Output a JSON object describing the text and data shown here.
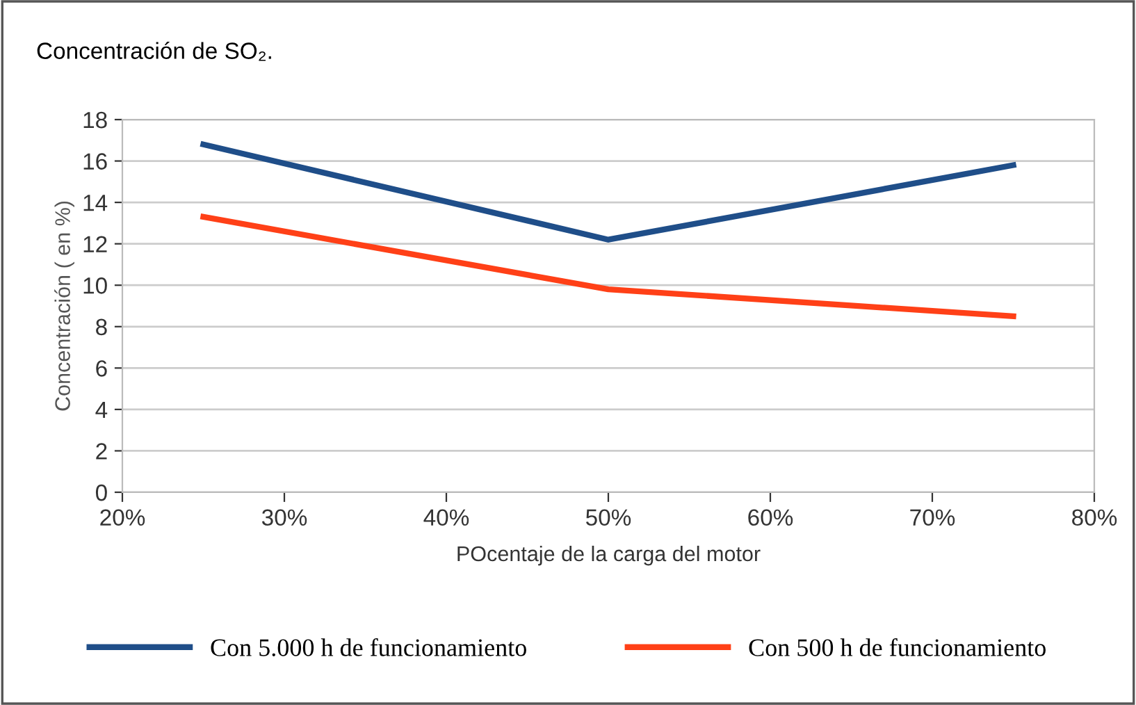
{
  "chart_data": {
    "type": "line",
    "title": "Concentración de SO₂.",
    "xlabel": "POcentaje de la carga del motor",
    "ylabel": "Concentración ( en %)",
    "x": [
      25,
      50,
      75
    ],
    "series": [
      {
        "name": "Con 5.000 h de funcionamiento",
        "color": "#1f4e89",
        "values": [
          16.8,
          12.2,
          15.8
        ]
      },
      {
        "name": "Con 500 h de funcionamiento",
        "color": "#ff4017",
        "values": [
          13.3,
          9.8,
          8.5
        ]
      }
    ],
    "xlim": [
      20,
      80
    ],
    "xticks": [
      {
        "value": 20,
        "label": "20%"
      },
      {
        "value": 30,
        "label": "30%"
      },
      {
        "value": 40,
        "label": "40%"
      },
      {
        "value": 50,
        "label": "50%"
      },
      {
        "value": 60,
        "label": "60%"
      },
      {
        "value": 70,
        "label": "70%"
      },
      {
        "value": 80,
        "label": "80%"
      }
    ],
    "ylim": [
      0,
      18
    ],
    "yticks": [
      0,
      2,
      4,
      6,
      8,
      10,
      12,
      14,
      16,
      18
    ],
    "grid": "y",
    "legend": "bottom",
    "marker": "none",
    "line_style": "solid"
  }
}
